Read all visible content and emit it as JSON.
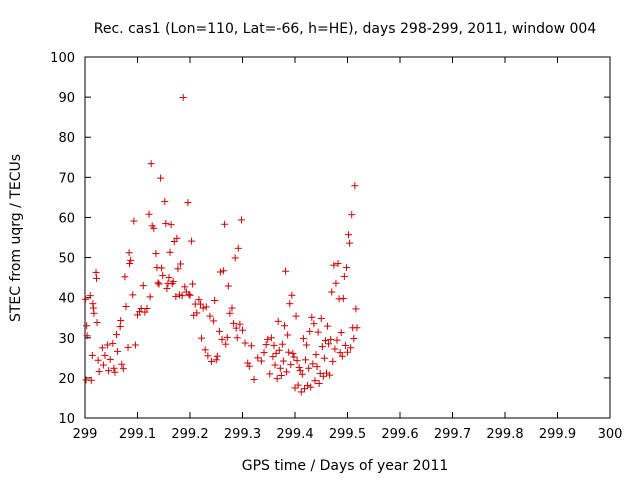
{
  "chart_data": {
    "type": "scatter",
    "title": "Rec. cas1 (Lon=110, Lat=-66, h=HE), days 298-299, 2011, window 004",
    "xlabel": "GPS time / Days of year 2011",
    "ylabel": "STEC from uqrg / TECUs",
    "xlim": [
      299,
      300
    ],
    "ylim": [
      10,
      100
    ],
    "x_ticks": [
      "299",
      "299.1",
      "299.2",
      "299.3",
      "299.4",
      "299.5",
      "299.6",
      "299.7",
      "299.8",
      "299.9",
      "300"
    ],
    "y_ticks": [
      "10",
      "20",
      "30",
      "40",
      "50",
      "60",
      "70",
      "80",
      "90",
      "100"
    ],
    "grid": false,
    "marker": "plus",
    "color": "#cc0000",
    "points": [
      [
        299.001,
        39.6
      ],
      [
        299.003,
        33
      ],
      [
        299.004,
        30.5
      ],
      [
        299.002,
        19.5
      ],
      [
        299.01,
        40.5
      ],
      [
        299.012,
        19.4
      ],
      [
        299.015,
        38.5
      ],
      [
        299.016,
        37.4
      ],
      [
        299.017,
        36.1
      ],
      [
        299.014,
        25.6
      ],
      [
        299.021,
        46.3
      ],
      [
        299.022,
        44.8
      ],
      [
        299.023,
        33.8
      ],
      [
        299.025,
        24.4
      ],
      [
        299.027,
        21.6
      ],
      [
        299.033,
        27.5
      ],
      [
        299.035,
        23.2
      ],
      [
        299.038,
        25.6
      ],
      [
        299.043,
        28.2
      ],
      [
        299.045,
        21.8
      ],
      [
        299.048,
        24.6
      ],
      [
        299.053,
        28.6
      ],
      [
        299.055,
        22.4
      ],
      [
        299.057,
        21.4
      ],
      [
        299.06,
        30.8
      ],
      [
        299.062,
        26.6
      ],
      [
        299.067,
        32.8
      ],
      [
        299.068,
        34.3
      ],
      [
        299.07,
        23.4
      ],
      [
        299.073,
        22.3
      ],
      [
        299.076,
        45.2
      ],
      [
        299.078,
        37.8
      ],
      [
        299.082,
        27.6
      ],
      [
        299.084,
        51.2
      ],
      [
        299.085,
        48.5
      ],
      [
        299.087,
        49.3
      ],
      [
        299.091,
        40.7
      ],
      [
        299.093,
        59.1
      ],
      [
        299.096,
        28.2
      ],
      [
        299.1,
        35.7
      ],
      [
        299.104,
        36.5
      ],
      [
        299.107,
        37.3
      ],
      [
        299.111,
        43
      ],
      [
        299.114,
        36.4
      ],
      [
        299.118,
        37.3
      ],
      [
        299.122,
        60.8
      ],
      [
        299.124,
        40.2
      ],
      [
        299.126,
        73.4
      ],
      [
        299.128,
        57.9
      ],
      [
        299.131,
        57.3
      ],
      [
        299.135,
        51
      ],
      [
        299.137,
        47.5
      ],
      [
        299.139,
        43.7
      ],
      [
        299.141,
        43.4
      ],
      [
        299.144,
        69.8
      ],
      [
        299.146,
        47.4
      ],
      [
        299.148,
        45.5
      ],
      [
        299.152,
        64
      ],
      [
        299.154,
        58.5
      ],
      [
        299.156,
        42.3
      ],
      [
        299.158,
        43.5
      ],
      [
        299.16,
        45
      ],
      [
        299.162,
        51.3
      ],
      [
        299.164,
        58.2
      ],
      [
        299.166,
        43.5
      ],
      [
        299.168,
        44
      ],
      [
        299.17,
        54
      ],
      [
        299.173,
        40.3
      ],
      [
        299.175,
        54.8
      ],
      [
        299.177,
        47.2
      ],
      [
        299.18,
        40.7
      ],
      [
        299.182,
        48.4
      ],
      [
        299.185,
        40.5
      ],
      [
        299.187,
        89.9
      ],
      [
        299.19,
        42.7
      ],
      [
        299.193,
        41.4
      ],
      [
        299.196,
        63.7
      ],
      [
        299.198,
        40.8
      ],
      [
        299.2,
        40.6
      ],
      [
        299.203,
        54.1
      ],
      [
        299.205,
        43.4
      ],
      [
        299.207,
        35.6
      ],
      [
        299.21,
        38.4
      ],
      [
        299.213,
        36.2
      ],
      [
        299.217,
        39.5
      ],
      [
        299.22,
        38.4
      ],
      [
        299.222,
        29.9
      ],
      [
        299.225,
        37.4
      ],
      [
        299.229,
        27
      ],
      [
        299.231,
        37.7
      ],
      [
        299.234,
        25.5
      ],
      [
        299.238,
        35.4
      ],
      [
        299.241,
        24.1
      ],
      [
        299.245,
        34.2
      ],
      [
        299.247,
        39.3
      ],
      [
        299.25,
        24.5
      ],
      [
        299.252,
        25.4
      ],
      [
        299.256,
        31.6
      ],
      [
        299.258,
        46.4
      ],
      [
        299.261,
        29.6
      ],
      [
        299.264,
        46.7
      ],
      [
        299.266,
        58.3
      ],
      [
        299.268,
        28.4
      ],
      [
        299.271,
        30.1
      ],
      [
        299.273,
        42.9
      ],
      [
        299.276,
        36.1
      ],
      [
        299.28,
        37.4
      ],
      [
        299.283,
        33.6
      ],
      [
        299.286,
        49.9
      ],
      [
        299.288,
        32.4
      ],
      [
        299.29,
        30
      ],
      [
        299.292,
        52.3
      ],
      [
        299.295,
        33.4
      ],
      [
        299.298,
        59.4
      ],
      [
        299.3,
        31.9
      ],
      [
        299.305,
        28.7
      ],
      [
        299.31,
        23.7
      ],
      [
        299.313,
        22.9
      ],
      [
        299.317,
        28
      ],
      [
        299.322,
        19.6
      ],
      [
        299.329,
        25
      ],
      [
        299.336,
        24.2
      ],
      [
        299.341,
        26.3
      ],
      [
        299.345,
        28.3
      ],
      [
        299.348,
        29.6
      ],
      [
        299.352,
        21
      ],
      [
        299.355,
        30
      ],
      [
        299.358,
        25.3
      ],
      [
        299.36,
        28.1
      ],
      [
        299.362,
        23.2
      ],
      [
        299.364,
        26.1
      ],
      [
        299.366,
        19.8
      ],
      [
        299.368,
        34.1
      ],
      [
        299.37,
        26.9
      ],
      [
        299.372,
        22.4
      ],
      [
        299.374,
        20.6
      ],
      [
        299.376,
        28.4
      ],
      [
        299.378,
        24.2
      ],
      [
        299.38,
        33
      ],
      [
        299.382,
        46.6
      ],
      [
        299.384,
        21.5
      ],
      [
        299.386,
        30.7
      ],
      [
        299.388,
        26.4
      ],
      [
        299.39,
        38.5
      ],
      [
        299.392,
        23.3
      ],
      [
        299.394,
        40.6
      ],
      [
        299.396,
        26.1
      ],
      [
        299.398,
        25.2
      ],
      [
        299.4,
        17.5
      ],
      [
        299.402,
        35.4
      ],
      [
        299.404,
        24.3
      ],
      [
        299.406,
        18.2
      ],
      [
        299.408,
        22.6
      ],
      [
        299.41,
        21.8
      ],
      [
        299.412,
        16.5
      ],
      [
        299.414,
        20.9
      ],
      [
        299.416,
        29.8
      ],
      [
        299.418,
        17.3
      ],
      [
        299.42,
        24.5
      ],
      [
        299.422,
        28.2
      ],
      [
        299.424,
        18.1
      ],
      [
        299.426,
        22.4
      ],
      [
        299.428,
        31.6
      ],
      [
        299.43,
        17.7
      ],
      [
        299.432,
        35.1
      ],
      [
        299.434,
        23.5
      ],
      [
        299.436,
        33.5
      ],
      [
        299.438,
        19.3
      ],
      [
        299.44,
        25.8
      ],
      [
        299.442,
        22.8
      ],
      [
        299.444,
        31.4
      ],
      [
        299.446,
        18.6
      ],
      [
        299.448,
        21.1
      ],
      [
        299.45,
        34.8
      ],
      [
        299.452,
        27.8
      ],
      [
        299.454,
        20.4
      ],
      [
        299.456,
        24.9
      ],
      [
        299.458,
        29.3
      ],
      [
        299.46,
        21.2
      ],
      [
        299.462,
        32.9
      ],
      [
        299.464,
        28.5
      ],
      [
        299.466,
        20.7
      ],
      [
        299.468,
        29.6
      ],
      [
        299.47,
        41.4
      ],
      [
        299.472,
        24.1
      ],
      [
        299.474,
        48.1
      ],
      [
        299.476,
        27.2
      ],
      [
        299.478,
        43.6
      ],
      [
        299.48,
        29.4
      ],
      [
        299.482,
        48.5
      ],
      [
        299.484,
        39.7
      ],
      [
        299.486,
        26.3
      ],
      [
        299.488,
        31.3
      ],
      [
        299.49,
        25.4
      ],
      [
        299.492,
        39.8
      ],
      [
        299.494,
        45.3
      ],
      [
        299.496,
        28.1
      ],
      [
        299.498,
        47.5
      ],
      [
        299.5,
        26.4
      ],
      [
        299.502,
        55.7
      ],
      [
        299.504,
        53.6
      ],
      [
        299.506,
        27.5
      ],
      [
        299.508,
        60.7
      ],
      [
        299.51,
        32.5
      ],
      [
        299.512,
        29.8
      ],
      [
        299.514,
        67.9
      ],
      [
        299.516,
        37.2
      ],
      [
        299.518,
        32.5
      ]
    ]
  }
}
